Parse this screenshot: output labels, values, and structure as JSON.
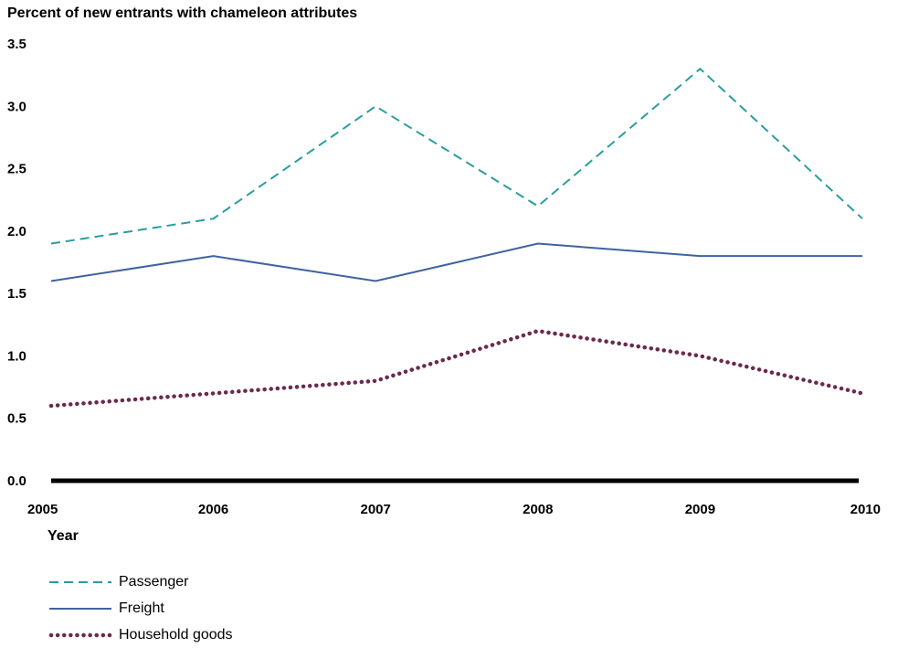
{
  "chart_data": {
    "type": "line",
    "title": "Percent of new entrants with chameleon attributes",
    "xlabel": "Year",
    "ylabel": "",
    "x": [
      2005,
      2006,
      2007,
      2008,
      2009,
      2010
    ],
    "y_ticks": [
      "0.0",
      "0.5",
      "1.0",
      "1.5",
      "2.0",
      "2.5",
      "3.0",
      "3.5"
    ],
    "ylim": [
      0,
      3.5
    ],
    "grid": false,
    "legend_position": "bottom-left",
    "series": [
      {
        "name": "Passenger",
        "values": [
          1.9,
          2.1,
          3.0,
          2.2,
          3.3,
          2.1
        ],
        "color": "#2a9d9f",
        "style": "dashed"
      },
      {
        "name": "Freight",
        "values": [
          1.6,
          1.8,
          1.6,
          1.9,
          1.8,
          1.8
        ],
        "color": "#3f63a0",
        "style": "solid"
      },
      {
        "name": "Household goods",
        "values": [
          0.6,
          0.7,
          0.8,
          1.2,
          1.0,
          0.7
        ],
        "color": "#6b2a4b",
        "style": "dotted"
      }
    ]
  }
}
